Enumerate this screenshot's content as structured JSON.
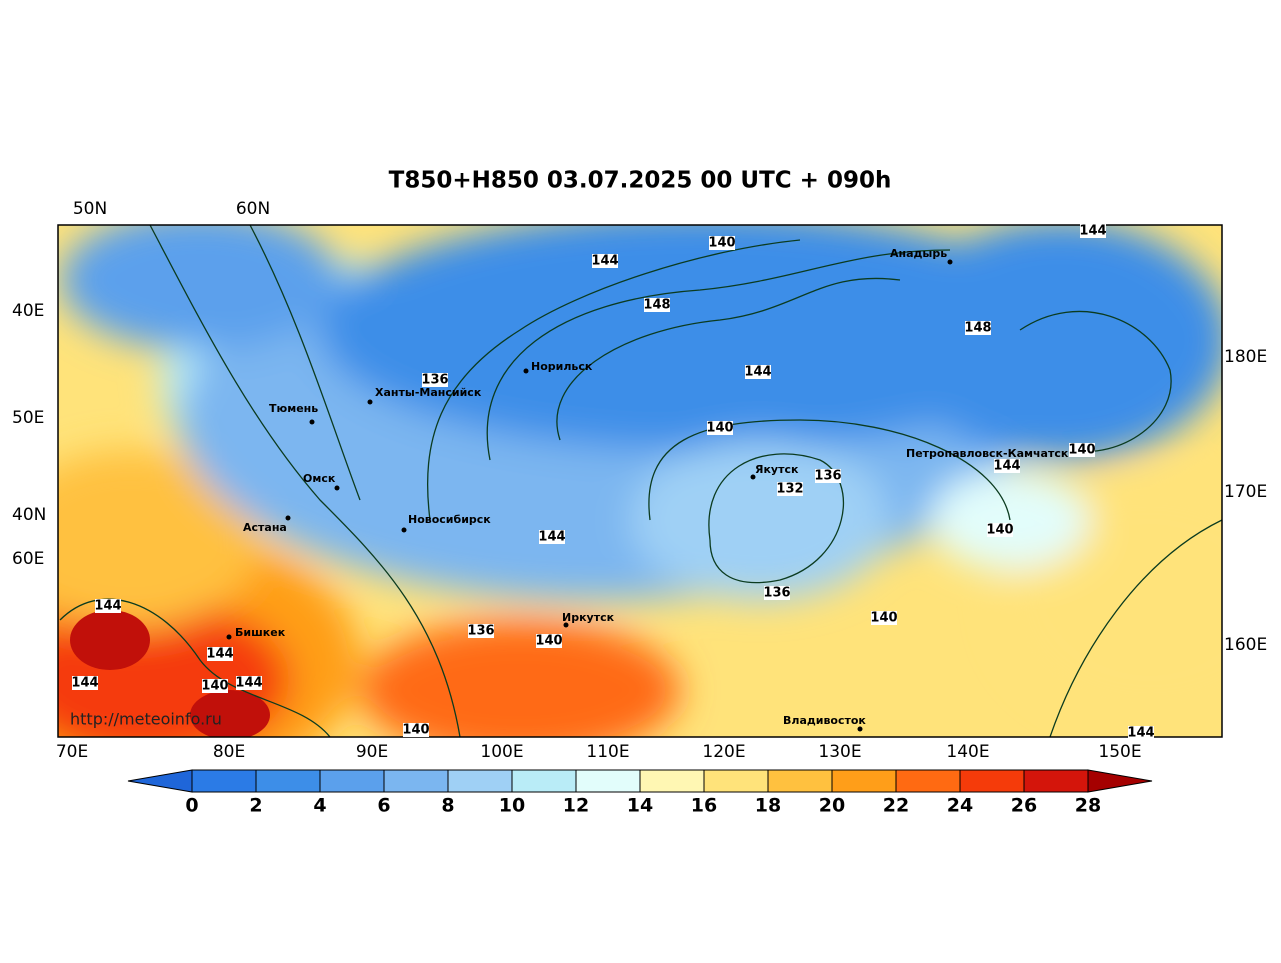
{
  "title": "T850+H850 03.07.2025 00 UTC + 090h",
  "watermark": "http://meteoinfo.ru",
  "top_labels": [
    "50N",
    "60N"
  ],
  "bottom_labels": [
    "70E",
    "80E",
    "90E",
    "100E",
    "110E",
    "120E",
    "130E",
    "140E",
    "150E"
  ],
  "left_labels": [
    "40E",
    "50E",
    "40N",
    "60E"
  ],
  "right_labels": [
    "180E",
    "170E",
    "160E"
  ],
  "cities": [
    "Норильск",
    "Ханты-Мансийск",
    "Тюмень",
    "Омск",
    "Астана",
    "Новосибирск",
    "Бишкек",
    "Иркутск",
    "Якутск",
    "Анадырь",
    "Петропавловск-Камчатский",
    "Владивосток"
  ],
  "contour_labels": [
    140,
    144,
    148,
    144,
    148,
    136,
    144,
    140,
    140,
    144,
    136,
    132,
    140,
    144,
    136,
    140,
    136,
    140,
    144,
    144,
    144,
    140,
    144,
    140,
    144
  ],
  "colorbar": {
    "ticks": [
      0,
      2,
      4,
      6,
      8,
      10,
      12,
      14,
      16,
      18,
      20,
      22,
      24,
      26,
      28
    ],
    "colors": [
      "#1f66d9",
      "#2b7be6",
      "#3d8ee8",
      "#5ba0ec",
      "#7bb6f0",
      "#9fd0f5",
      "#b9ecf7",
      "#e2fdfb",
      "#fff7b3",
      "#ffe37a",
      "#ffc13f",
      "#ff9e19",
      "#ff6a12",
      "#f53b0a",
      "#d4150b",
      "#a50000"
    ]
  }
}
